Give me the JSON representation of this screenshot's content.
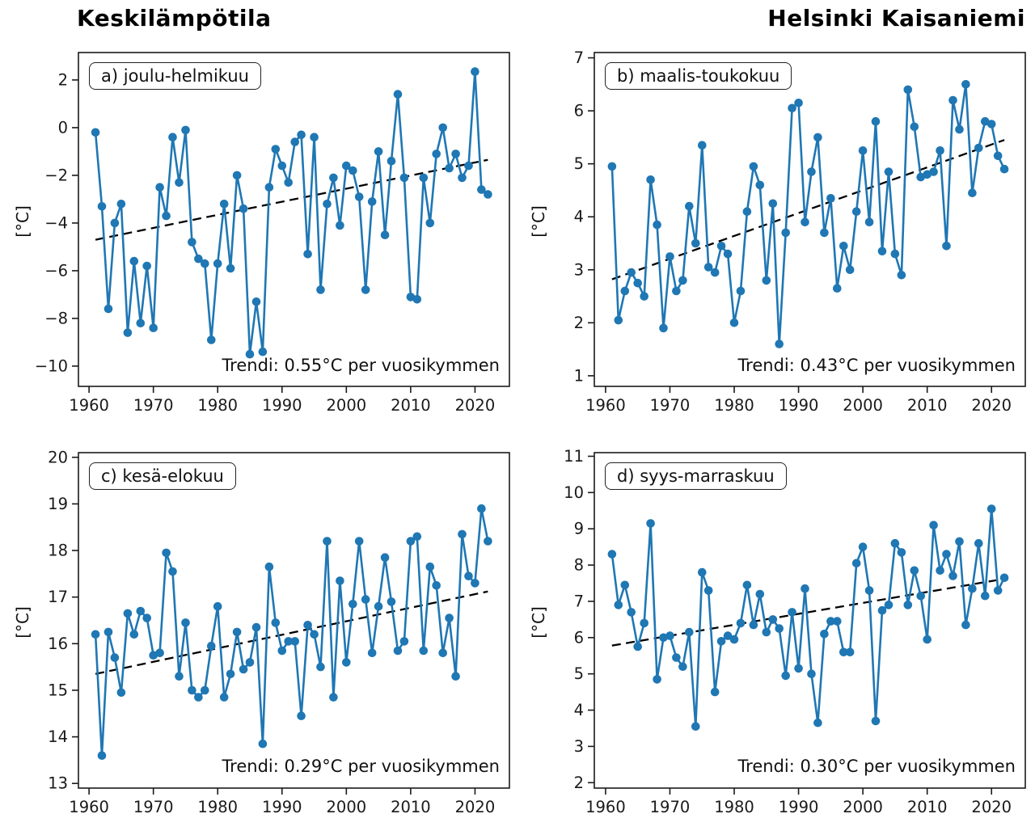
{
  "page": {
    "title_left": "Keskilämpötila",
    "title_right": "Helsinki Kaisaniemi"
  },
  "colors": {
    "series": "#1f77b4",
    "trend": "#000000",
    "axis": "#1a1a1a",
    "background": "#ffffff"
  },
  "chart_data": [
    {
      "id": "a",
      "type": "line",
      "panel_label": "a) joulu-helmikuu",
      "trend_label": "Trendi: 0.55°C per vuosikymmen",
      "trend_per_decade_c": 0.55,
      "ylabel": "[°C]",
      "years_start": 1961,
      "years_end": 2022,
      "values": [
        -0.2,
        -3.3,
        -7.6,
        -4.0,
        -3.2,
        -8.6,
        -5.6,
        -8.2,
        -5.8,
        -8.4,
        -2.5,
        -3.7,
        -0.4,
        -2.3,
        -0.1,
        -4.8,
        -5.5,
        -5.7,
        -8.9,
        -5.7,
        -3.2,
        -5.9,
        -2.0,
        -3.4,
        -9.5,
        -7.3,
        -9.4,
        -2.5,
        -0.9,
        -1.6,
        -2.3,
        -0.6,
        -0.3,
        -5.3,
        -0.4,
        -6.8,
        -3.2,
        -2.1,
        -4.1,
        -1.6,
        -1.8,
        -2.9,
        -6.8,
        -3.1,
        -1.0,
        -4.5,
        -1.4,
        1.4,
        -2.1,
        -7.1,
        -7.2,
        -2.1,
        -4.0,
        -1.1,
        0.0,
        -1.7,
        -1.1,
        -2.1,
        -1.6,
        2.35,
        -2.6,
        -2.8
      ],
      "trend_line": {
        "x": [
          1961,
          2022
        ],
        "y": [
          -4.7,
          -1.35
        ]
      },
      "xlim": [
        1958.35,
        2025.35
      ],
      "ylim": [
        -10.85,
        3.15
      ],
      "xticks": [
        1960,
        1970,
        1980,
        1990,
        2000,
        2010,
        2020
      ],
      "yticks": [
        2,
        0,
        -2,
        -4,
        -6,
        -8,
        -10
      ],
      "grid": false,
      "legend": "none"
    },
    {
      "id": "b",
      "type": "line",
      "panel_label": "b) maalis-toukokuu",
      "trend_label": "Trendi: 0.43°C per vuosikymmen",
      "trend_per_decade_c": 0.43,
      "ylabel": "[°C]",
      "years_start": 1961,
      "years_end": 2022,
      "values": [
        4.95,
        2.05,
        2.6,
        2.95,
        2.75,
        2.5,
        4.7,
        3.85,
        1.9,
        3.25,
        2.6,
        2.8,
        4.2,
        3.5,
        5.35,
        3.05,
        2.95,
        3.45,
        3.3,
        2.0,
        2.6,
        4.1,
        4.95,
        4.6,
        2.8,
        4.25,
        1.6,
        3.7,
        6.05,
        6.15,
        3.9,
        4.85,
        5.5,
        3.7,
        4.35,
        2.65,
        3.45,
        3.0,
        4.1,
        5.25,
        3.9,
        5.8,
        3.35,
        4.85,
        3.3,
        2.9,
        6.4,
        5.7,
        4.75,
        4.8,
        4.85,
        5.25,
        3.45,
        6.2,
        5.65,
        6.5,
        4.45,
        5.3,
        5.8,
        5.75,
        5.15,
        4.9
      ],
      "trend_line": {
        "x": [
          1961,
          2022
        ],
        "y": [
          2.82,
          5.45
        ]
      },
      "xlim": [
        1958.25,
        2025.25
      ],
      "ylim": [
        0.8,
        7.1
      ],
      "xticks": [
        1960,
        1970,
        1980,
        1990,
        2000,
        2010,
        2020
      ],
      "yticks": [
        7,
        6,
        5,
        4,
        3,
        2,
        1
      ],
      "grid": false,
      "legend": "none"
    },
    {
      "id": "c",
      "type": "line",
      "panel_label": "c) kesä-elokuu",
      "trend_label": "Trendi: 0.29°C per vuosikymmen",
      "trend_per_decade_c": 0.29,
      "ylabel": "[°C]",
      "years_start": 1961,
      "years_end": 2022,
      "values": [
        16.2,
        13.6,
        16.25,
        15.7,
        14.95,
        16.65,
        16.2,
        16.7,
        16.55,
        15.75,
        15.8,
        17.95,
        17.55,
        15.3,
        16.45,
        15.0,
        14.85,
        15.0,
        15.95,
        16.8,
        14.85,
        15.35,
        16.25,
        15.45,
        15.6,
        16.35,
        13.85,
        17.65,
        16.45,
        15.85,
        16.05,
        16.05,
        14.45,
        16.4,
        16.2,
        15.5,
        18.2,
        14.85,
        17.35,
        15.6,
        16.85,
        18.2,
        16.95,
        15.8,
        16.8,
        17.85,
        16.9,
        15.85,
        16.05,
        18.2,
        18.3,
        15.85,
        17.65,
        17.25,
        15.8,
        16.55,
        15.3,
        18.35,
        17.45,
        17.3,
        18.9,
        18.2
      ],
      "trend_line": {
        "x": [
          1961,
          2022
        ],
        "y": [
          15.35,
          17.12
        ]
      },
      "xlim": [
        1958.35,
        2025.35
      ],
      "ylim": [
        12.9,
        20.1
      ],
      "xticks": [
        1960,
        1970,
        1980,
        1990,
        2000,
        2010,
        2020
      ],
      "yticks": [
        20,
        19,
        18,
        17,
        16,
        15,
        14,
        13
      ],
      "grid": false,
      "legend": "none"
    },
    {
      "id": "d",
      "type": "line",
      "panel_label": "d) syys-marraskuu",
      "trend_label": "Trendi: 0.30°C per vuosikymmen",
      "trend_per_decade_c": 0.3,
      "ylabel": "[°C]",
      "years_start": 1961,
      "years_end": 2022,
      "values": [
        8.3,
        6.9,
        7.45,
        6.7,
        5.75,
        6.4,
        9.15,
        4.85,
        6.0,
        6.05,
        5.45,
        5.2,
        6.15,
        3.55,
        7.8,
        7.3,
        4.5,
        5.9,
        6.05,
        5.95,
        6.4,
        7.45,
        6.35,
        7.2,
        6.15,
        6.5,
        6.25,
        4.95,
        6.7,
        5.15,
        7.35,
        5.0,
        3.65,
        6.1,
        6.45,
        6.45,
        5.6,
        5.6,
        8.05,
        8.5,
        7.3,
        3.7,
        6.75,
        6.9,
        8.6,
        8.35,
        6.9,
        7.85,
        7.15,
        5.95,
        9.1,
        7.85,
        8.3,
        7.7,
        8.65,
        6.35,
        7.35,
        8.6,
        7.15,
        9.55,
        7.3,
        7.65
      ],
      "trend_line": {
        "x": [
          1961,
          2022
        ],
        "y": [
          5.78,
          7.62
        ]
      },
      "xlim": [
        1958.25,
        2025.25
      ],
      "ylim": [
        1.85,
        11.1
      ],
      "xticks": [
        1960,
        1970,
        1980,
        1990,
        2000,
        2010,
        2020
      ],
      "yticks": [
        11,
        10,
        9,
        8,
        7,
        6,
        5,
        4,
        3,
        2
      ],
      "grid": false,
      "legend": "none"
    }
  ]
}
